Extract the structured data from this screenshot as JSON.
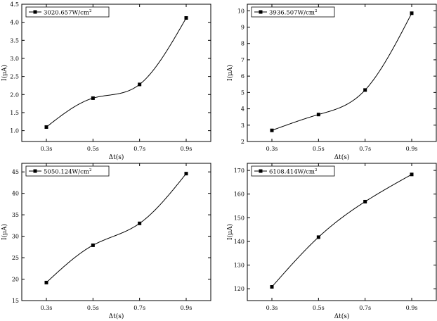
{
  "chart_data": [
    {
      "type": "line",
      "categories": [
        "0.3s",
        "0.5s",
        "0.7s",
        "0.9s"
      ],
      "series": [
        {
          "name": "3020.657W/cm²",
          "legend_main": "3020.657W/cm",
          "legend_sup": "2",
          "values": [
            1.1,
            1.9,
            2.28,
            4.12
          ]
        }
      ],
      "xlabel": "Δt(s)",
      "ylabel": "I(μA)",
      "ylim": [
        0.7,
        4.5
      ],
      "yticks": [
        "1.0",
        "1.5",
        "2.0",
        "2.5",
        "3.0",
        "3.5",
        "4.0",
        "4.5"
      ],
      "ytick_values": [
        1.0,
        1.5,
        2.0,
        2.5,
        3.0,
        3.5,
        4.0,
        4.5
      ],
      "legend": "top-left"
    },
    {
      "type": "line",
      "categories": [
        "0.3s",
        "0.5s",
        "0.7s",
        "0.9s"
      ],
      "series": [
        {
          "name": "3936.507W/cm²",
          "legend_main": "3936.507W/cm",
          "legend_sup": "2",
          "values": [
            2.68,
            3.65,
            5.15,
            9.85
          ]
        }
      ],
      "xlabel": "Δt(s)",
      "ylabel": "I(μA)",
      "ylim": [
        2,
        10.4
      ],
      "yticks": [
        "2",
        "3",
        "4",
        "5",
        "6",
        "7",
        "8",
        "9",
        "10"
      ],
      "ytick_values": [
        2,
        3,
        4,
        5,
        6,
        7,
        8,
        9,
        10
      ],
      "legend": "top-left"
    },
    {
      "type": "line",
      "categories": [
        "0.3s",
        "0.5s",
        "0.7s",
        "0.9s"
      ],
      "series": [
        {
          "name": "5050.124W/cm²",
          "legend_main": "5050.124W/cm",
          "legend_sup": "2",
          "values": [
            19.2,
            27.9,
            33.0,
            44.6
          ]
        }
      ],
      "xlabel": "Δt(s)",
      "ylabel": "I(μA)",
      "ylim": [
        15,
        47
      ],
      "yticks": [
        "15",
        "20",
        "25",
        "30",
        "35",
        "40",
        "45"
      ],
      "ytick_values": [
        15,
        20,
        25,
        30,
        35,
        40,
        45
      ],
      "legend": "top-left"
    },
    {
      "type": "line",
      "categories": [
        "0.3s",
        "0.5s",
        "0.7s",
        "0.9s"
      ],
      "series": [
        {
          "name": "6108.414W/cm²",
          "legend_main": "6108.414W/cm",
          "legend_sup": "2",
          "values": [
            120.8,
            141.8,
            156.8,
            168.3
          ]
        }
      ],
      "xlabel": "Δt(s)",
      "ylabel": "I(μA)",
      "ylim": [
        115,
        173
      ],
      "yticks": [
        "120",
        "130",
        "140",
        "150",
        "160",
        "170"
      ],
      "ytick_values": [
        120,
        130,
        140,
        150,
        160,
        170
      ],
      "legend": "top-left"
    }
  ]
}
